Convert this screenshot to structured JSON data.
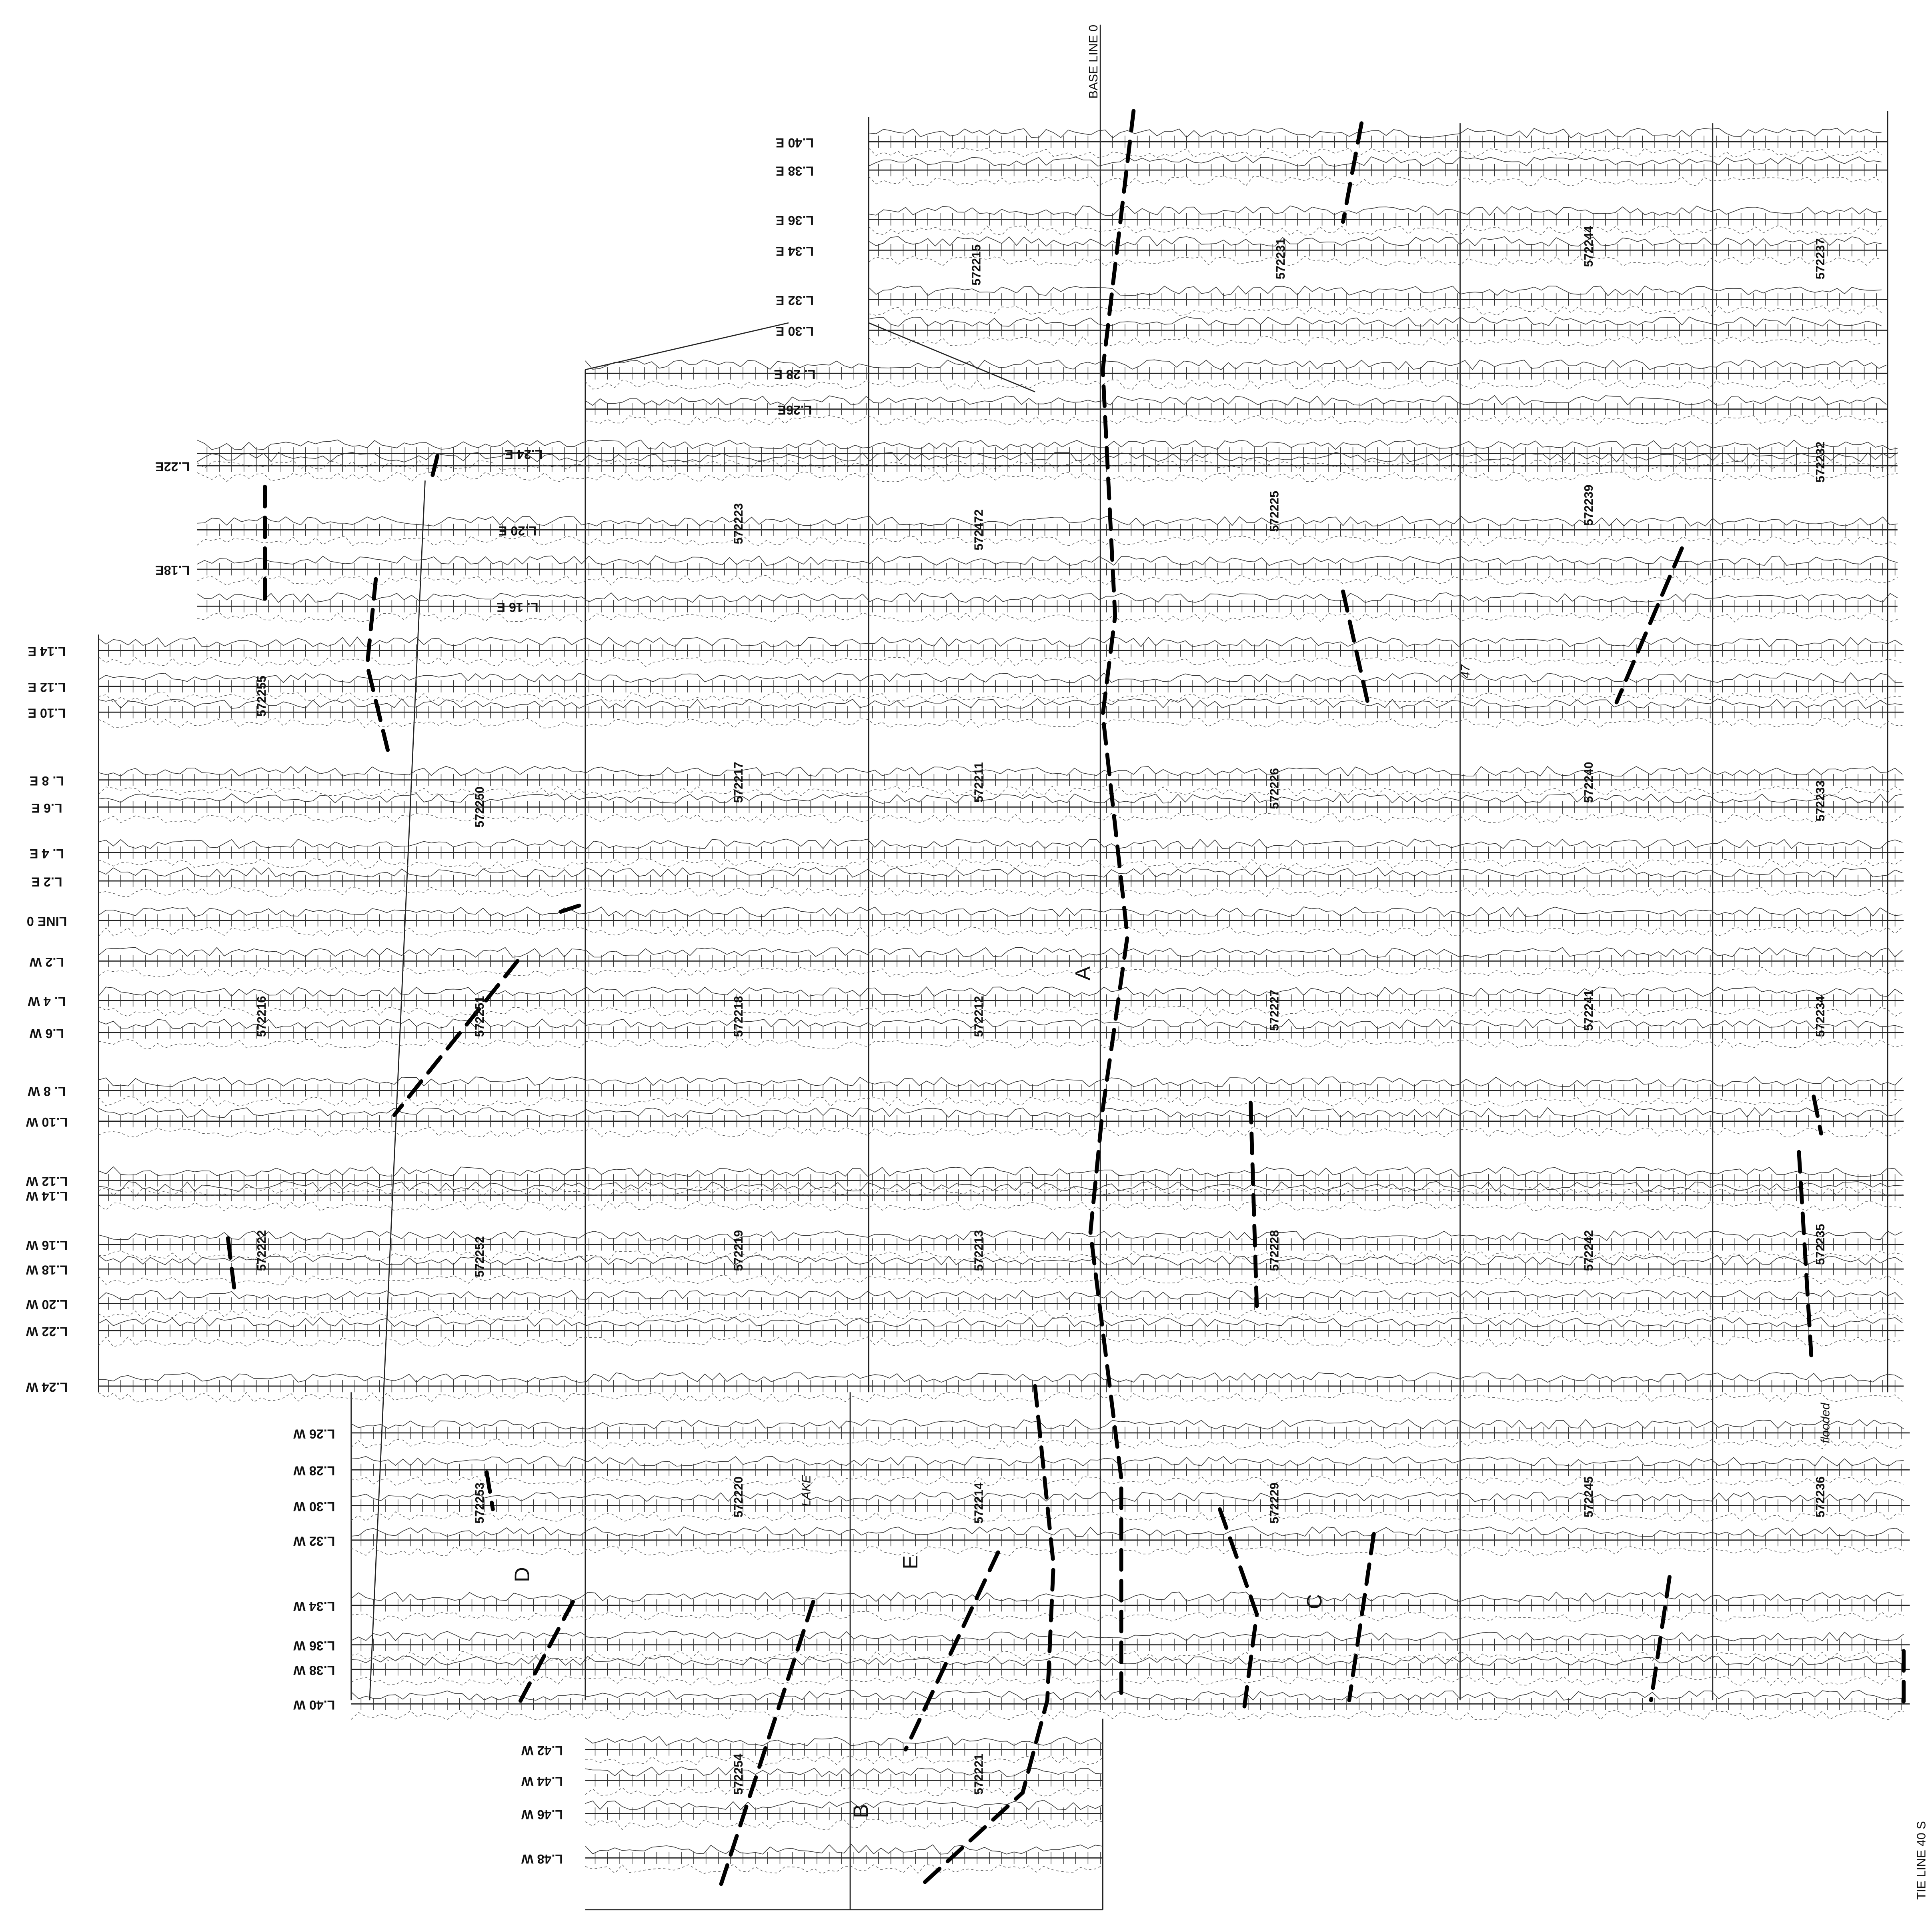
{
  "base_line": "BASE LINE 0",
  "tie_line": "TIE LINE 40 S",
  "lines": [
    "L.40 E",
    "L.38 E",
    "L.36 E",
    "L.34 E",
    "L.32 E",
    "L.30 E",
    "L. 28 E",
    "L.26E",
    "L.24 E",
    "L.22E",
    "L.20 E",
    "L.18E",
    "L. 16 E",
    "L.14 E",
    "L.12 E",
    "L.10 E",
    "L. 8 E",
    "L.6 E",
    "L. 4 E",
    "L.2 E",
    "LINE 0",
    "L.2 W",
    "L. 4 W",
    "L.6 W",
    "L. 8 W",
    "L.10 W",
    "L.12 W",
    "L.14 W",
    "L.16 W",
    "L.18 W",
    "L.20 W",
    "L.22 W",
    "L.24 W",
    "L.26 W",
    "L.28 W",
    "L.30 W",
    "L.32 W",
    "L.34 W",
    "L.36 W",
    "L.38 W",
    "L.40 W",
    "L.42 W",
    "L.44 W",
    "L.46 W",
    "L.48 W"
  ],
  "claims": [
    "572215",
    "572231",
    "572244",
    "572237",
    "572223",
    "572472",
    "572225",
    "572239",
    "572232",
    "572255",
    "572250",
    "572217",
    "572211",
    "572226",
    "572240",
    "572233",
    "572216",
    "572251",
    "572218",
    "572212",
    "572227",
    "572241",
    "572234",
    "572222",
    "572252",
    "572219",
    "572213",
    "572228",
    "572242",
    "572235",
    "572253",
    "572220",
    "572214",
    "572229",
    "572245",
    "572236",
    "572254",
    "572221"
  ],
  "anomalies": [
    "A",
    "B",
    "C",
    "D",
    "E"
  ],
  "annotations": [
    "LAKE",
    "flooded",
    "47"
  ]
}
